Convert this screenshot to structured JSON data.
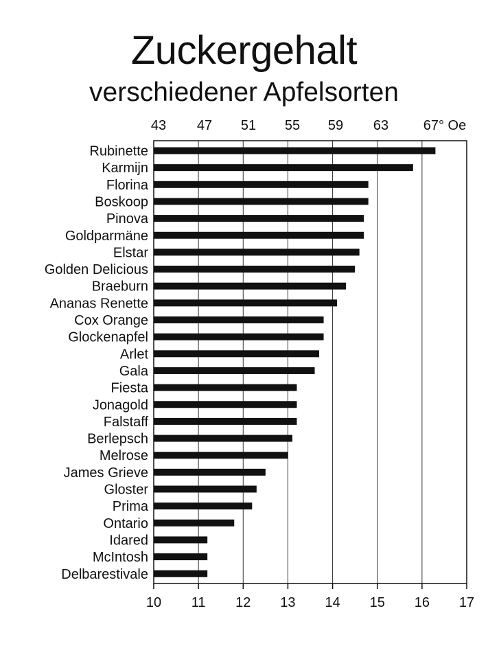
{
  "chart_data": {
    "type": "bar",
    "orientation": "horizontal",
    "title": "Zuckergehalt",
    "subtitle": "verschiedener Apfelsorten",
    "categories": [
      "Rubinette",
      "Karmijn",
      "Florina",
      "Boskoop",
      "Pinova",
      "Goldparmäne",
      "Elstar",
      "Golden Delicious",
      "Braeburn",
      "Ananas Renette",
      "Cox Orange",
      "Glockenapfel",
      "Arlet",
      "Gala",
      "Fiesta",
      "Jonagold",
      "Falstaff",
      "Berlepsch",
      "Melrose",
      "James Grieve",
      "Gloster",
      "Prima",
      "Ontario",
      "Idared",
      "McIntosh",
      "Delbarestivale"
    ],
    "values": [
      16.3,
      15.8,
      14.8,
      14.8,
      14.7,
      14.7,
      14.6,
      14.5,
      14.3,
      14.1,
      13.8,
      13.8,
      13.7,
      13.6,
      13.2,
      13.2,
      13.2,
      13.1,
      13.0,
      12.5,
      12.3,
      12.2,
      11.8,
      11.2,
      11.2,
      11.2
    ],
    "xlim": [
      10,
      17
    ],
    "x_ticks_bottom": [
      "10",
      "11",
      "12",
      "13",
      "14",
      "15",
      "16",
      "17"
    ],
    "x_ticks_top": [
      "43",
      "47",
      "51",
      "55",
      "59",
      "63",
      "67° Oe"
    ],
    "grid": true,
    "bar_color": "#111111"
  }
}
